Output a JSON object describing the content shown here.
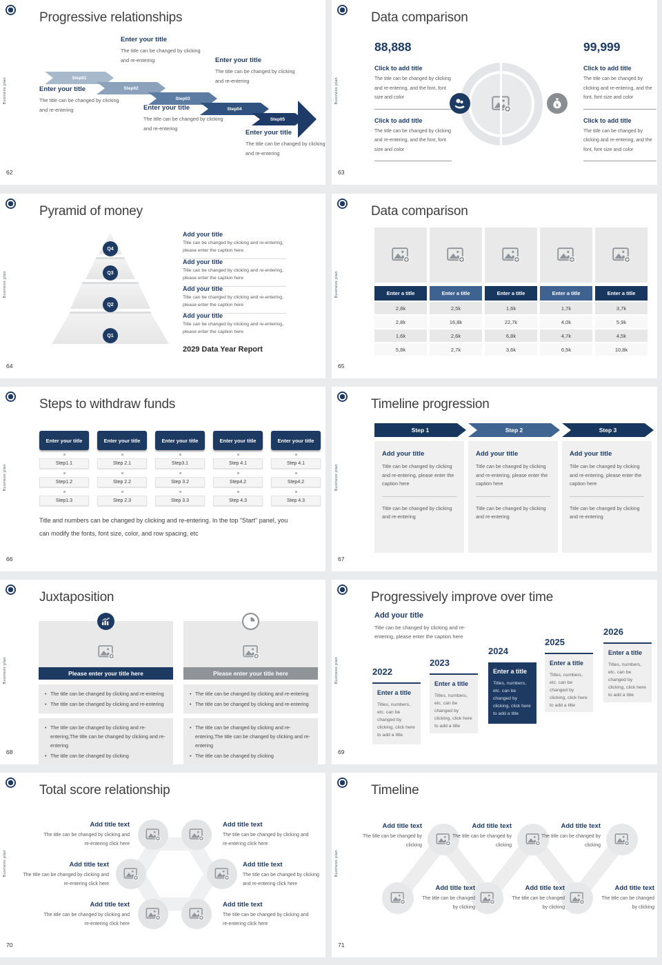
{
  "common": {
    "vertical_label": "Business plan"
  },
  "colors": {
    "navy": "#1d3a63",
    "mid_blue": "#406592",
    "placeholder_gray": "#e9e9e9"
  },
  "s62": {
    "number": "62",
    "title": "Progressive relationships",
    "steps": [
      "Step01",
      "Step02",
      "Step03",
      "Step04",
      "Step05"
    ],
    "block_title": "Enter your title",
    "block_caption": "The title can be changed by clicking and re-entering"
  },
  "s63": {
    "number": "63",
    "title": "Data comparison",
    "left_value": "88,888",
    "right_value": "99,999",
    "block_title": "Click to add title",
    "block_caption": "The title can be changed by clicking and re-entering, and the font, font size and color"
  },
  "s64": {
    "number": "64",
    "title": "Pyramid of money",
    "levels": [
      "Q4",
      "Q3",
      "Q2",
      "Q1"
    ],
    "item_title": "Add your title",
    "item_caption": "Title can be changed by clicking and re-entering, please enter the caption here",
    "footer": "2029 Data Year Report"
  },
  "s65": {
    "number": "65",
    "title": "Data comparison",
    "column_header": "Enter a title",
    "rows": [
      [
        "2,8k",
        "2,5k",
        "1,6k",
        "1,7k",
        "3,7k"
      ],
      [
        "2,8k",
        "16,8k",
        "22,7k",
        "4,0k",
        "5,9k"
      ],
      [
        "1,6k",
        "2,6k",
        "6,8k",
        "4,7k",
        "4,5k"
      ],
      [
        "5,8k",
        "2,7k",
        "3,6k",
        "6,5k",
        "10,8k"
      ]
    ]
  },
  "s66": {
    "number": "66",
    "title": "Steps to withdraw funds",
    "column_header": "Enter your title",
    "columns": [
      [
        "Step1.1",
        "Step1.2",
        "Step1.3"
      ],
      [
        "Step 2.1",
        "Step 2.2",
        "Step 2.3"
      ],
      [
        "Step3.1",
        "Step 3.2",
        "Step 3.3"
      ],
      [
        "Step 4.1",
        "Step4.2",
        "Step 4.3"
      ],
      [
        "Step 4.1",
        "Step4.2",
        "Step 4.3"
      ]
    ],
    "note": "Title and numbers can be changed by clicking and re-entering. In the top \"Start\" panel, you can modify the fonts, font size, color, and row spacing, etc"
  },
  "s67": {
    "number": "67",
    "title": "Timeline progression",
    "steps": [
      "Step 1",
      "Step 2",
      "Step 3"
    ],
    "card_title": "Add your title",
    "card_caption": "Title can be changed by clicking and re-entering, please enter the caption here",
    "card_caption2": "Title can be changed by clicking and re-entering"
  },
  "s68": {
    "number": "68",
    "title": "Juxtaposition",
    "bar_title": "Please enter your title here",
    "bullets_a": [
      "The title can be changed by clicking and re-entering",
      "The title can be changed by clicking and re-entering"
    ],
    "bullets_b": [
      "The title can be changed by clicking and re-entering,The title can be changed by clicking and re-entering",
      "The title can be changed by clicking"
    ]
  },
  "s69": {
    "number": "69",
    "title": "Progressively improve over time",
    "intro_title": "Add your title",
    "intro_caption": "Title can be changed by clicking and re-entering, please enter the caption here",
    "years": [
      "2022",
      "2023",
      "2024",
      "2025",
      "2026"
    ],
    "card_title": "Enter a title",
    "card_caption": "Titles, numbers, etc. can be changed by clicking, click here to add a title"
  },
  "s70": {
    "number": "70",
    "title": "Total score relationship",
    "item_title": "Add title text",
    "item_caption": "The title can be changed by clicking and re-entering click here"
  },
  "s71": {
    "number": "71",
    "title": "Timeline",
    "item_title": "Add title text",
    "item_caption": "The title can be changed by clicking"
  }
}
